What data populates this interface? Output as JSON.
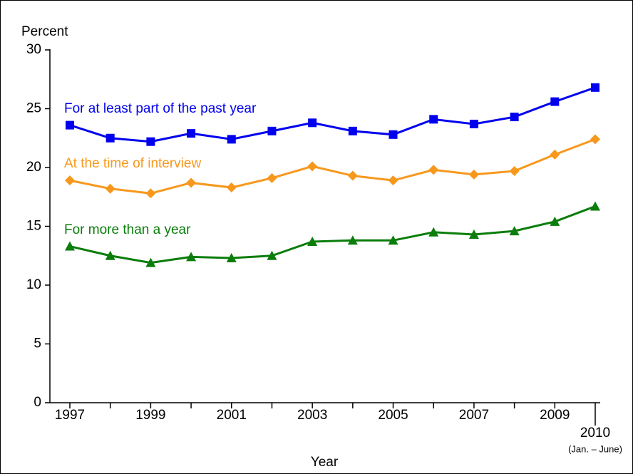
{
  "chart_data": {
    "type": "line",
    "y_label": "Percent",
    "x_label": "Year",
    "categories": [
      "1997",
      null,
      "1999",
      null,
      "2001",
      null,
      "2003",
      null,
      "2005",
      null,
      "2007",
      null,
      "2009",
      "2010"
    ],
    "last_category_note": "(Jan. – June)",
    "ylim": [
      0,
      30
    ],
    "yticks": [
      0,
      5,
      10,
      15,
      20,
      25,
      30
    ],
    "series": [
      {
        "name": "For at least part of the past year",
        "color": "#0000ee",
        "marker": "square",
        "values": [
          23.6,
          22.5,
          22.2,
          22.9,
          22.4,
          23.1,
          23.8,
          23.1,
          22.8,
          24.1,
          23.7,
          24.3,
          25.6,
          26.8
        ]
      },
      {
        "name": "At the time of interview",
        "color": "#f7981d",
        "marker": "diamond",
        "values": [
          18.9,
          18.2,
          17.8,
          18.7,
          18.3,
          19.1,
          20.1,
          19.3,
          18.9,
          19.8,
          19.4,
          19.7,
          21.1,
          22.4
        ]
      },
      {
        "name": "For more than a year",
        "color": "#0a7d0a",
        "marker": "triangle",
        "values": [
          13.3,
          12.5,
          11.9,
          12.4,
          12.3,
          12.5,
          13.7,
          13.8,
          13.8,
          14.5,
          14.3,
          14.6,
          15.4,
          16.7
        ]
      }
    ]
  }
}
